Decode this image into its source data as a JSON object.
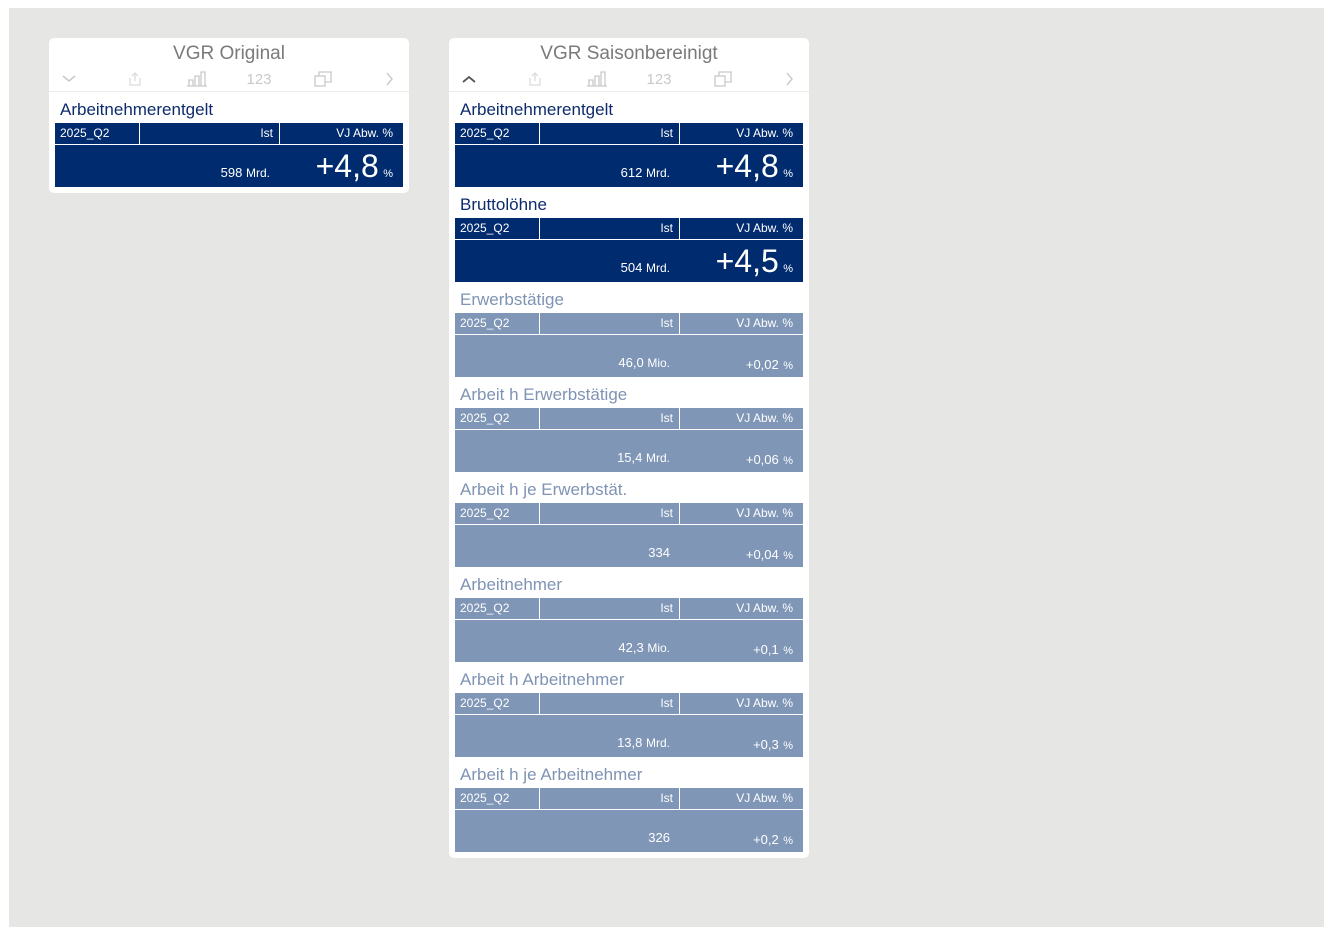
{
  "panels": [
    {
      "title": "VGR Original",
      "toolbar": {
        "collapse_icon": "chevron-down-icon"
      },
      "cards": [
        {
          "title": "Arbeitnehmerentgelt",
          "period": "2025_Q2",
          "col_ist": "Ist",
          "col_abw": "VJ Abw. %",
          "ist_value": "598",
          "ist_unit": "Mrd.",
          "abw_value": "+4,8",
          "abw_unit": "%",
          "style": "dark"
        }
      ]
    },
    {
      "title": "VGR Saisonbereinigt",
      "toolbar": {
        "collapse_icon": "chevron-up-icon"
      },
      "cards": [
        {
          "title": "Arbeitnehmerentgelt",
          "period": "2025_Q2",
          "col_ist": "Ist",
          "col_abw": "VJ Abw. %",
          "ist_value": "612",
          "ist_unit": "Mrd.",
          "abw_value": "+4,8",
          "abw_unit": "%",
          "style": "dark"
        },
        {
          "title": "Bruttolöhne",
          "period": "2025_Q2",
          "col_ist": "Ist",
          "col_abw": "VJ Abw. %",
          "ist_value": "504",
          "ist_unit": "Mrd.",
          "abw_value": "+4,5",
          "abw_unit": "%",
          "style": "dark"
        },
        {
          "title": "Erwerbstätige",
          "period": "2025_Q2",
          "col_ist": "Ist",
          "col_abw": "VJ Abw. %",
          "ist_value": "46,0",
          "ist_unit": "Mio.",
          "abw_value": "+0,02",
          "abw_unit": "%",
          "style": "light"
        },
        {
          "title": "Arbeit h Erwerbstätige",
          "period": "2025_Q2",
          "col_ist": "Ist",
          "col_abw": "VJ Abw. %",
          "ist_value": "15,4",
          "ist_unit": "Mrd.",
          "abw_value": "+0,06",
          "abw_unit": "%",
          "style": "light"
        },
        {
          "title": "Arbeit h je Erwerbstät.",
          "period": "2025_Q2",
          "col_ist": "Ist",
          "col_abw": "VJ Abw. %",
          "ist_value": "334",
          "ist_unit": "",
          "abw_value": "+0,04",
          "abw_unit": "%",
          "style": "light"
        },
        {
          "title": "Arbeitnehmer",
          "period": "2025_Q2",
          "col_ist": "Ist",
          "col_abw": "VJ Abw. %",
          "ist_value": "42,3",
          "ist_unit": "Mio.",
          "abw_value": "+0,1",
          "abw_unit": "%",
          "style": "light"
        },
        {
          "title": "Arbeit h Arbeitnehmer",
          "period": "2025_Q2",
          "col_ist": "Ist",
          "col_abw": "VJ Abw. %",
          "ist_value": "13,8",
          "ist_unit": "Mrd.",
          "abw_value": "+0,3",
          "abw_unit": "%",
          "style": "light"
        },
        {
          "title": "Arbeit h je Arbeitnehmer",
          "period": "2025_Q2",
          "col_ist": "Ist",
          "col_abw": "VJ Abw. %",
          "ist_value": "326",
          "ist_unit": "",
          "abw_value": "+0,2",
          "abw_unit": "%",
          "style": "light"
        }
      ]
    }
  ],
  "toolbar_icons": [
    "share-icon",
    "bar-chart-icon",
    "numbers-icon",
    "window-icon",
    "chevron-right-icon"
  ],
  "toolbar_numbers_label": "123",
  "colors": {
    "dark": "#002b6e",
    "light": "#7f96b7",
    "background": "#e6e6e4"
  }
}
